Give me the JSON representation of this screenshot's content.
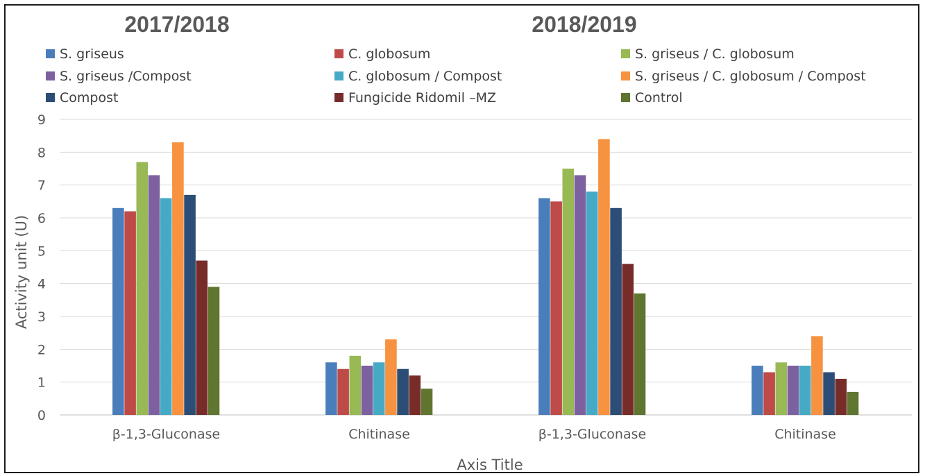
{
  "chart_data": {
    "type": "bar",
    "titles": [
      "2017/2018",
      "2018/2019"
    ],
    "categories": [
      "β-1,3-Gluconase",
      "Chitinase",
      "β-1,3-Gluconase",
      "Chitinase"
    ],
    "xlabel": "Axis Title",
    "ylabel": "Activity unit (U)",
    "ylim": [
      0,
      9
    ],
    "yticks": [
      "0",
      "1",
      "2",
      "3",
      "4",
      "5",
      "6",
      "7",
      "8",
      "9"
    ],
    "grid": true,
    "legend_position": "top",
    "series": [
      {
        "name": "S. griseus",
        "color": "#4a7ebb",
        "values": [
          6.3,
          1.6,
          6.6,
          1.5
        ]
      },
      {
        "name": "C. globosum",
        "color": "#be4b48",
        "values": [
          6.2,
          1.4,
          6.5,
          1.3
        ]
      },
      {
        "name": "S. griseus / C. globosum",
        "color": "#98b954",
        "values": [
          7.7,
          1.8,
          7.5,
          1.6
        ]
      },
      {
        "name": "S. griseus  /Compost",
        "color": "#7d60a0",
        "values": [
          7.3,
          1.5,
          7.3,
          1.5
        ]
      },
      {
        "name": "C. globosum  / Compost",
        "color": "#46aac5",
        "values": [
          6.6,
          1.6,
          6.8,
          1.5
        ]
      },
      {
        "name": "S. griseus / C. globosum  / Compost",
        "color": "#f69240",
        "values": [
          8.3,
          2.3,
          8.4,
          2.4
        ]
      },
      {
        "name": "Compost",
        "color": "#2c4d75",
        "values": [
          6.7,
          1.4,
          6.3,
          1.3
        ]
      },
      {
        "name": "Fungicide Ridomil –MZ",
        "color": "#772c2a",
        "values": [
          4.7,
          1.2,
          4.6,
          1.1
        ]
      },
      {
        "name": "Control",
        "color": "#5f7530",
        "values": [
          3.9,
          0.8,
          3.7,
          0.7
        ]
      }
    ]
  }
}
